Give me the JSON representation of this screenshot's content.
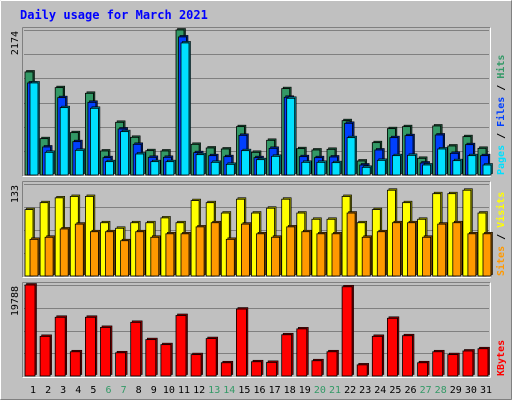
{
  "title": "Daily usage for March 2021",
  "colors": {
    "background": "#c0c0c0",
    "title": "#0000ff",
    "hits": "#339966",
    "files": "#0040ff",
    "pages": "#00e0ff",
    "visits": "#ffff00",
    "sites": "#ff9900",
    "kbytes": "#ff0000",
    "weekday_label": "#000000",
    "weekend_label": "#339966"
  },
  "chart_data": [
    {
      "type": "bar",
      "panel": "hits-files-pages",
      "ymax_label": "2174",
      "ylim": [
        0,
        2174
      ],
      "grid": true,
      "legend": [
        {
          "name": "Pages",
          "color_key": "pages"
        },
        {
          "name": "Files",
          "color_key": "files"
        },
        {
          "name": "Hits",
          "color_key": "hits"
        }
      ],
      "categories": [
        "1",
        "2",
        "3",
        "4",
        "5",
        "6",
        "7",
        "8",
        "9",
        "10",
        "11",
        "12",
        "13",
        "14",
        "15",
        "16",
        "17",
        "18",
        "19",
        "20",
        "21",
        "22",
        "23",
        "24",
        "25",
        "26",
        "27",
        "28",
        "29",
        "30",
        "31"
      ],
      "series": [
        {
          "name": "Hits",
          "color_key": "hits",
          "values": [
            1545,
            545,
            1310,
            635,
            1225,
            360,
            790,
            565,
            365,
            360,
            2174,
            460,
            405,
            390,
            725,
            340,
            520,
            1295,
            395,
            375,
            385,
            815,
            210,
            485,
            695,
            725,
            250,
            735,
            435,
            575,
            400
          ]
        },
        {
          "name": "Files",
          "color_key": "files",
          "values": [
            1380,
            420,
            1160,
            500,
            1090,
            260,
            690,
            460,
            265,
            265,
            2070,
            335,
            290,
            275,
            595,
            260,
            400,
            1165,
            275,
            260,
            270,
            775,
            150,
            375,
            560,
            590,
            180,
            600,
            325,
            455,
            290
          ]
        },
        {
          "name": "Pages",
          "color_key": "pages",
          "values": [
            1380,
            340,
            1010,
            370,
            1000,
            200,
            650,
            315,
            200,
            200,
            1980,
            305,
            190,
            160,
            365,
            230,
            280,
            1150,
            190,
            190,
            185,
            560,
            115,
            220,
            290,
            295,
            150,
            390,
            215,
            290,
            150
          ]
        }
      ]
    },
    {
      "type": "bar",
      "panel": "visits-sites",
      "ymax_label": "133",
      "ylim": [
        0,
        133
      ],
      "grid": true,
      "legend": [
        {
          "name": "Sites",
          "color_key": "sites"
        },
        {
          "name": "Visits",
          "color_key": "visits"
        }
      ],
      "categories": [
        "1",
        "2",
        "3",
        "4",
        "5",
        "6",
        "7",
        "8",
        "9",
        "10",
        "11",
        "12",
        "13",
        "14",
        "15",
        "16",
        "17",
        "18",
        "19",
        "20",
        "21",
        "22",
        "23",
        "24",
        "25",
        "26",
        "27",
        "28",
        "29",
        "30",
        "31"
      ],
      "series": [
        {
          "name": "Visits",
          "color_key": "visits",
          "values": [
            96,
            106,
            113,
            115,
            115,
            77,
            69,
            77,
            77,
            84,
            77,
            109,
            106,
            91,
            111,
            91,
            98,
            111,
            91,
            82,
            82,
            115,
            77,
            96,
            124,
            106,
            82,
            119,
            119,
            124,
            91
          ]
        },
        {
          "name": "Sites",
          "color_key": "sites",
          "values": [
            53,
            56,
            68,
            75,
            64,
            64,
            51,
            64,
            56,
            61,
            61,
            71,
            77,
            53,
            75,
            61,
            56,
            71,
            64,
            61,
            61,
            91,
            56,
            64,
            77,
            77,
            56,
            75,
            77,
            61,
            61
          ]
        }
      ]
    },
    {
      "type": "bar",
      "panel": "kbytes",
      "ymax_label": "19788",
      "ylim": [
        0,
        19788
      ],
      "grid": true,
      "legend": [
        {
          "name": "KBytes",
          "color_key": "kbytes"
        }
      ],
      "categories": [
        "1",
        "2",
        "3",
        "4",
        "5",
        "6",
        "7",
        "8",
        "9",
        "10",
        "11",
        "12",
        "13",
        "14",
        "15",
        "16",
        "17",
        "18",
        "19",
        "20",
        "21",
        "22",
        "23",
        "24",
        "25",
        "26",
        "27",
        "28",
        "29",
        "30",
        "31"
      ],
      "series": [
        {
          "name": "KBytes",
          "color_key": "kbytes",
          "values": [
            19788,
            8620,
            12770,
            5270,
            12770,
            10570,
            5050,
            11670,
            7910,
            6820,
            13160,
            4650,
            8140,
            2880,
            14560,
            3100,
            2970,
            8970,
            10250,
            3320,
            5270,
            19400,
            2420,
            8620,
            12550,
            8760,
            2880,
            5270,
            4650,
            5440,
            5930
          ]
        }
      ]
    }
  ],
  "weekend_days": [
    "6",
    "7",
    "13",
    "14",
    "20",
    "21",
    "27",
    "28"
  ]
}
